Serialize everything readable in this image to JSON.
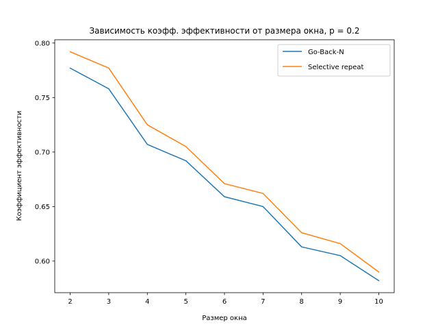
{
  "chart_data": {
    "type": "line",
    "title": "Зависимость коэфф. эффективности от размера окна, p = 0.2",
    "xlabel": "Размер окна",
    "ylabel": "Коэффициент эффективности",
    "x": [
      2,
      3,
      4,
      5,
      6,
      7,
      8,
      9,
      10
    ],
    "xticks": [
      "2",
      "3",
      "4",
      "5",
      "6",
      "7",
      "8",
      "9",
      "10"
    ],
    "yticks": [
      "0.60",
      "0.65",
      "0.70",
      "0.75",
      "0.80"
    ],
    "xlim": [
      1.6,
      10.4
    ],
    "ylim": [
      0.571,
      0.803
    ],
    "grid": false,
    "legend_position": "top-right",
    "series": [
      {
        "name": "Go-Back-N",
        "color": "#1f77b4",
        "values": [
          0.777,
          0.758,
          0.707,
          0.692,
          0.659,
          0.65,
          0.613,
          0.605,
          0.582
        ]
      },
      {
        "name": "Selective repeat",
        "color": "#ff7f0e",
        "values": [
          0.792,
          0.777,
          0.725,
          0.705,
          0.671,
          0.662,
          0.626,
          0.616,
          0.59
        ]
      }
    ]
  }
}
